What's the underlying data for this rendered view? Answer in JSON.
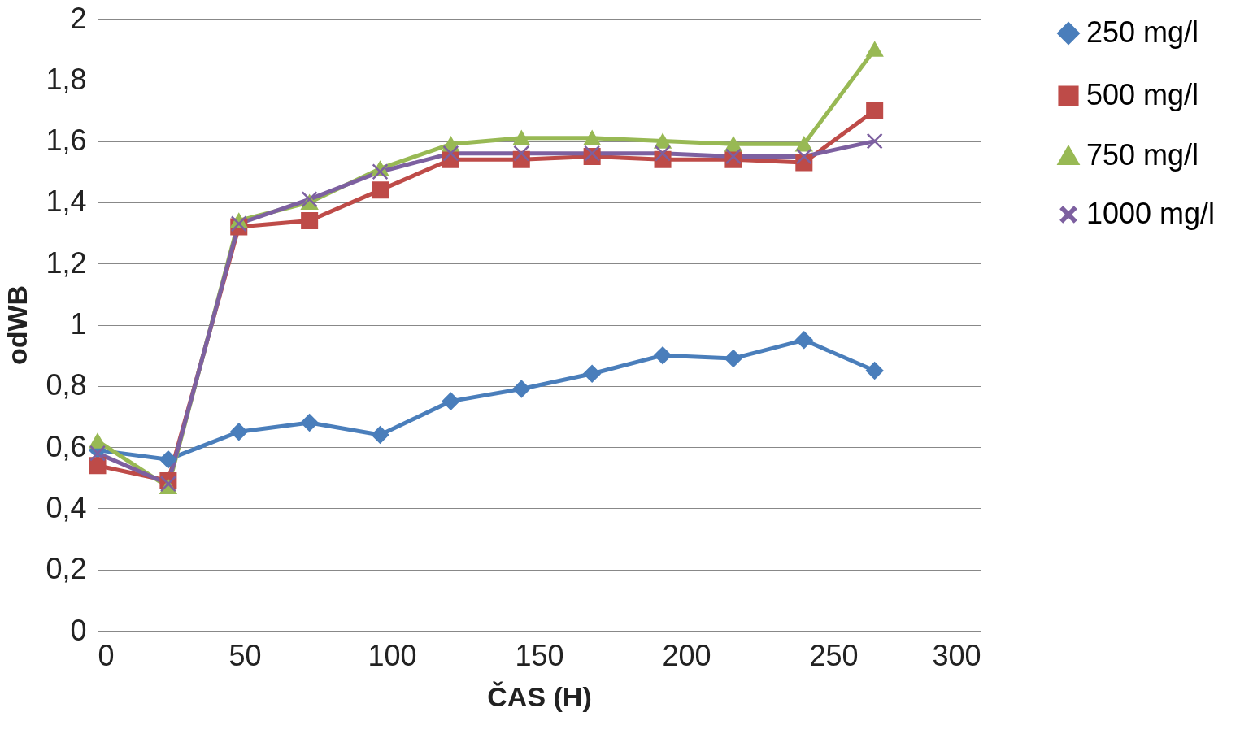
{
  "chart_data": {
    "type": "line",
    "xlabel": "ČAS (H)",
    "ylabel": "odWB",
    "x": [
      0,
      24,
      48,
      72,
      96,
      120,
      144,
      168,
      192,
      216,
      240,
      264
    ],
    "series": [
      {
        "name": "250 mg/l",
        "color": "#4a7ebb",
        "marker": "diamond",
        "values": [
          0.59,
          0.56,
          0.65,
          0.68,
          0.64,
          0.75,
          0.79,
          0.84,
          0.9,
          0.89,
          0.95,
          0.85
        ]
      },
      {
        "name": "500 mg/l",
        "color": "#be4b48",
        "marker": "square",
        "values": [
          0.54,
          0.49,
          1.32,
          1.34,
          1.44,
          1.54,
          1.54,
          1.55,
          1.54,
          1.54,
          1.53,
          1.7
        ]
      },
      {
        "name": "750 mg/l",
        "color": "#98b954",
        "marker": "triangle",
        "values": [
          0.62,
          0.47,
          1.34,
          1.4,
          1.51,
          1.59,
          1.61,
          1.61,
          1.6,
          1.59,
          1.59,
          1.9
        ]
      },
      {
        "name": "1000 mg/l",
        "color": "#7d60a0",
        "marker": "cross",
        "values": [
          0.58,
          0.48,
          1.33,
          1.41,
          1.5,
          1.56,
          1.56,
          1.56,
          1.56,
          1.55,
          1.55,
          1.6
        ]
      }
    ],
    "xlim": [
      0,
      300
    ],
    "xticks": [
      0,
      50,
      100,
      150,
      200,
      250,
      300
    ],
    "ylim": [
      0,
      2
    ],
    "yticks": [
      0,
      {
        "value": 0.2,
        "label": "0,2"
      },
      {
        "value": 0.4,
        "label": "0,4"
      },
      {
        "value": 0.6,
        "label": "0,6"
      },
      {
        "value": 0.8,
        "label": "0,8"
      },
      1,
      {
        "value": 1.2,
        "label": "1,2"
      },
      {
        "value": 1.4,
        "label": "1,4"
      },
      {
        "value": 1.6,
        "label": "1,6"
      },
      {
        "value": 1.8,
        "label": "1,8"
      },
      2
    ],
    "grid": "y",
    "legend": "right",
    "line_style": "solid"
  }
}
